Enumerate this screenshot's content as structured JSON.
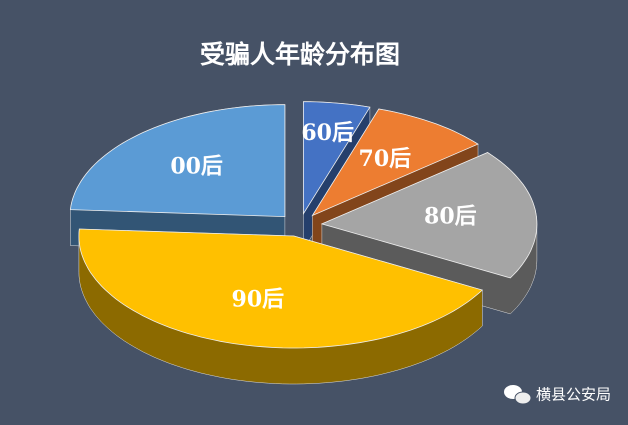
{
  "chart_data": {
    "type": "pie3d",
    "title": "受骗人年龄分布图",
    "categories": [
      "60后",
      "70后",
      "80后",
      "90后",
      "00后"
    ],
    "values": [
      5,
      9,
      19,
      43,
      24
    ],
    "colors": [
      "#4472c4",
      "#ed7d31",
      "#a5a5a5",
      "#ffc000",
      "#5b9bd5"
    ],
    "watermark": "横县公安局"
  }
}
